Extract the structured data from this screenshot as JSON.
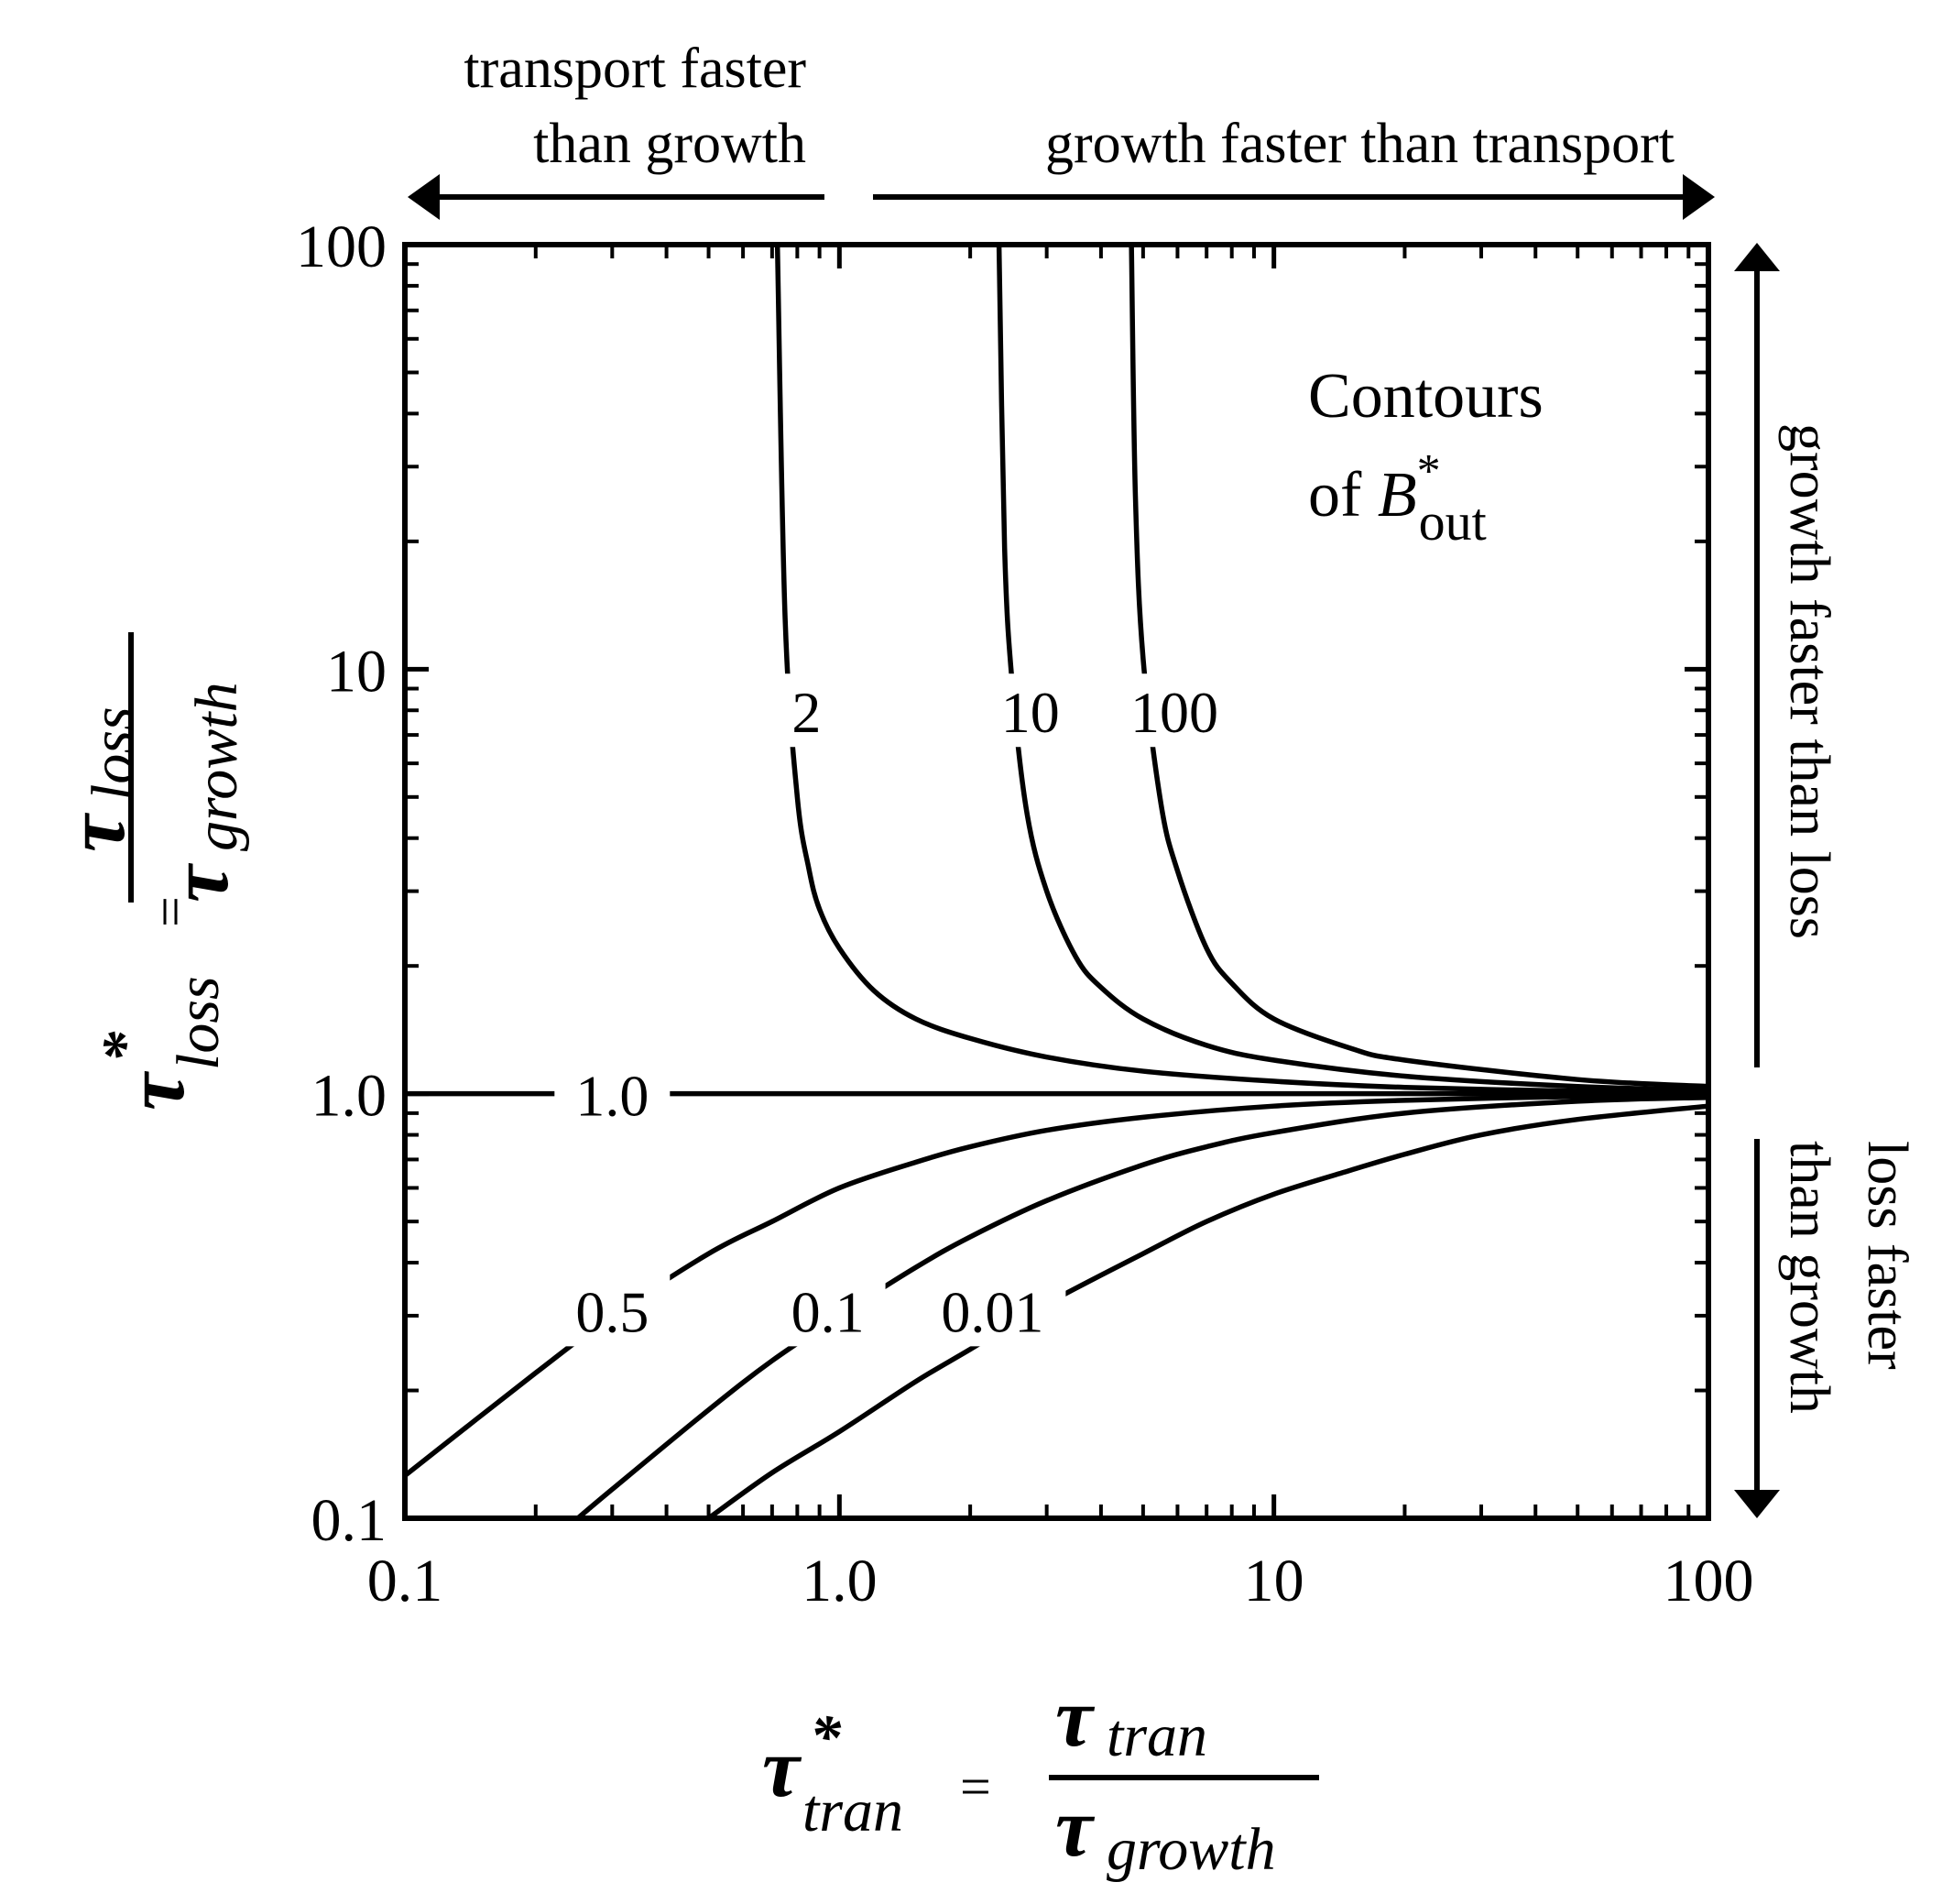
{
  "chart_data": {
    "type": "line",
    "title": "",
    "x_scale": "log",
    "y_scale": "log",
    "xlim": [
      0.1,
      100
    ],
    "ylim": [
      0.1,
      100
    ],
    "x_ticks": [
      0.1,
      1,
      10,
      100
    ],
    "x_tick_labels": [
      "0.1",
      "1.0",
      "10",
      "100"
    ],
    "y_ticks": [
      0.1,
      1,
      10,
      100
    ],
    "y_tick_labels": [
      "0.1",
      "1.0",
      "10",
      "100"
    ],
    "xlabel": {
      "symbol": "τ",
      "superscript": "*",
      "subscript": "tran",
      "equals": "=",
      "numerator_symbol": "τ",
      "numerator_subscript": "tran",
      "denominator_symbol": "τ",
      "denominator_subscript": "growth"
    },
    "ylabel": {
      "symbol": "τ",
      "superscript": "*",
      "subscript": "loss",
      "equals": "=",
      "numerator_symbol": "τ",
      "numerator_subscript": "loss",
      "denominator_symbol": "τ",
      "denominator_subscript": "growth"
    },
    "legend_title": {
      "line1": "Contours",
      "line2_prefix": "of ",
      "symbol": "B",
      "superscript": "*",
      "subscript": "out"
    },
    "legend_position": "top-right",
    "grid": false,
    "series": [
      {
        "name": "2",
        "x": [
          0.72,
          0.75,
          0.8,
          0.85,
          0.9,
          1.0,
          1.2,
          1.5,
          2.0,
          3.0,
          5.0,
          10,
          20,
          50,
          100
        ],
        "y": [
          100,
          13.2,
          5.0,
          3.4,
          2.72,
          2.2,
          1.75,
          1.5,
          1.35,
          1.22,
          1.13,
          1.07,
          1.035,
          1.014,
          1.007
        ]
      },
      {
        "name": "10",
        "x": [
          2.33,
          2.4,
          2.5,
          2.7,
          3.0,
          3.5,
          4.0,
          5.0,
          7.0,
          10,
          20,
          50,
          100
        ],
        "y": [
          100,
          19.3,
          9.2,
          4.6,
          3.0,
          2.1,
          1.78,
          1.5,
          1.3,
          1.2,
          1.1,
          1.04,
          1.02
        ]
      },
      {
        "name": "100",
        "x": [
          4.7,
          4.8,
          5.0,
          5.5,
          6.0,
          7.0,
          8.0,
          10,
          15,
          20,
          50,
          100
        ],
        "y": [
          100,
          25.6,
          10.6,
          4.8,
          3.35,
          2.2,
          1.82,
          1.5,
          1.28,
          1.2,
          1.08,
          1.04
        ]
      },
      {
        "name": "1.0",
        "x": [
          0.1,
          100
        ],
        "y": [
          1.0,
          1.0
        ]
      },
      {
        "name": "0.5",
        "x": [
          0.1,
          0.2,
          0.3,
          0.5,
          0.7,
          1.0,
          1.5,
          2.0,
          3.0,
          5.0,
          10,
          20,
          50,
          100
        ],
        "y": [
          0.126,
          0.22,
          0.3,
          0.42,
          0.5,
          0.6,
          0.69,
          0.75,
          0.82,
          0.88,
          0.935,
          0.965,
          0.985,
          0.993
        ]
      },
      {
        "name": "0.1",
        "x": [
          0.25,
          0.3,
          0.5,
          0.7,
          1.0,
          1.5,
          2.0,
          3.0,
          5.0,
          7.0,
          10,
          20,
          50,
          100
        ],
        "y": [
          0.1,
          0.117,
          0.18,
          0.235,
          0.3,
          0.39,
          0.46,
          0.56,
          0.68,
          0.75,
          0.81,
          0.9,
          0.96,
          0.98
        ]
      },
      {
        "name": "0.01",
        "x": [
          0.5,
          0.7,
          1.0,
          1.5,
          2.0,
          3.0,
          5.0,
          7.0,
          10,
          15,
          20,
          30,
          50,
          100
        ],
        "y": [
          0.1,
          0.128,
          0.16,
          0.21,
          0.25,
          0.32,
          0.42,
          0.5,
          0.58,
          0.66,
          0.72,
          0.8,
          0.87,
          0.935
        ]
      }
    ],
    "contour_labels": [
      {
        "text": "2",
        "x": 0.84,
        "y": 8.0
      },
      {
        "text": "10",
        "x": 2.75,
        "y": 8.0
      },
      {
        "text": "100",
        "x": 5.9,
        "y": 8.0
      },
      {
        "text": "1.0",
        "x": 0.3,
        "y": 1.0
      },
      {
        "text": "0.5",
        "x": 0.3,
        "y": 0.31
      },
      {
        "text": "0.1",
        "x": 0.94,
        "y": 0.31
      },
      {
        "text": "0.01",
        "x": 2.25,
        "y": 0.31
      }
    ],
    "annotations": {
      "top_left_line1": "transport faster",
      "top_left_line2": "than growth",
      "top_right": "growth faster than transport",
      "right_upper": "growth faster than loss",
      "right_lower_line1": "loss faster",
      "right_lower_line2": "than growth"
    }
  }
}
